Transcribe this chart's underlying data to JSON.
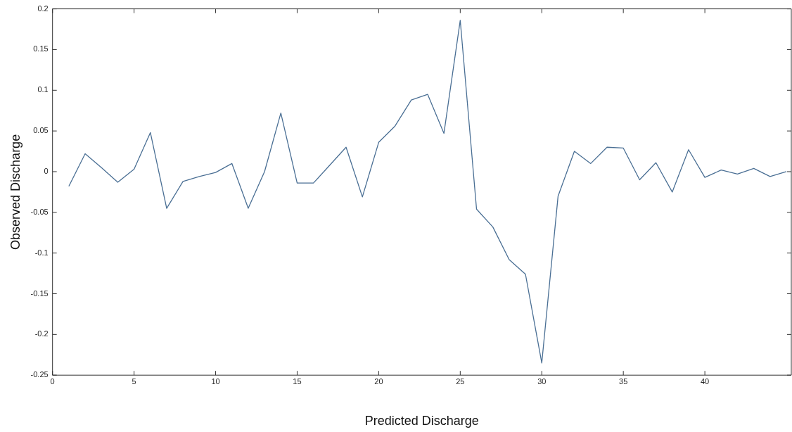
{
  "chart_data": {
    "type": "line",
    "xlabel": "Predicted Discharge",
    "ylabel": "Observed Discharge",
    "x": [
      1,
      2,
      3,
      4,
      5,
      6,
      7,
      8,
      9,
      10,
      11,
      12,
      13,
      14,
      15,
      16,
      17,
      18,
      19,
      20,
      21,
      22,
      23,
      24,
      25,
      26,
      27,
      28,
      29,
      30,
      31,
      32,
      33,
      34,
      35,
      36,
      37,
      38,
      39,
      40,
      41,
      42,
      43,
      44,
      45
    ],
    "series": [
      {
        "color": "#4a6f94",
        "values": [
          -0.018,
          0.022,
          0.005,
          -0.013,
          0.003,
          0.048,
          -0.045,
          -0.012,
          -0.006,
          -0.001,
          0.01,
          -0.045,
          0.0,
          0.072,
          -0.014,
          -0.014,
          0.008,
          0.03,
          -0.031,
          0.036,
          0.056,
          0.088,
          0.095,
          0.047,
          0.186,
          -0.046,
          -0.068,
          -0.108,
          -0.126,
          -0.235,
          -0.03,
          0.025,
          0.01,
          0.03,
          0.029,
          -0.01,
          0.011,
          -0.025,
          0.027,
          -0.007,
          0.002,
          -0.003,
          0.004,
          -0.006,
          0.0
        ]
      }
    ],
    "xlim": [
      0,
      45.3
    ],
    "xticks": [
      0,
      5,
      10,
      15,
      20,
      25,
      30,
      35,
      40
    ],
    "ylim": [
      -0.25,
      0.2
    ],
    "yticks": [
      -0.25,
      -0.2,
      -0.15,
      -0.1,
      -0.05,
      0,
      0.05,
      0.1,
      0.15,
      0.2
    ],
    "grid": false,
    "legend": false,
    "marker": "none",
    "line_style": "solid"
  }
}
